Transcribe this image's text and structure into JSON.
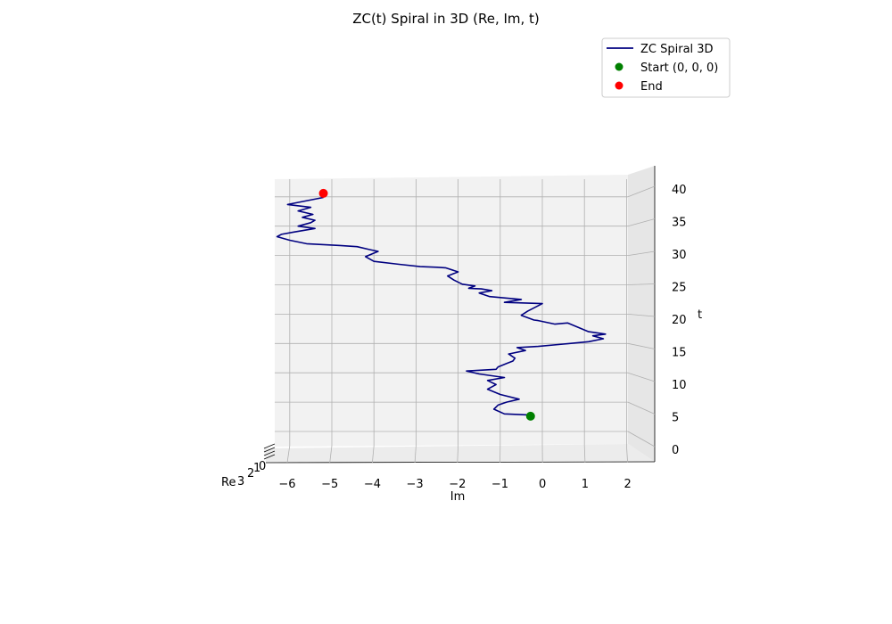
{
  "chart_data": {
    "type": "line",
    "projection": "3d",
    "title": "ZC(t) Spiral in 3D (Re, Im, t)",
    "xlabel": "Re",
    "ylabel": "Im",
    "zlabel": "t",
    "x_ticks": [
      "0",
      "1",
      "2",
      "3"
    ],
    "y_ticks": [
      "−6",
      "−5",
      "−4",
      "−3",
      "−2",
      "−1",
      "0",
      "1",
      "2"
    ],
    "z_ticks": [
      "0",
      "5",
      "10",
      "15",
      "20",
      "25",
      "30",
      "35",
      "40"
    ],
    "ylim": [
      -6.3,
      2.6
    ],
    "zlim": [
      -1,
      42
    ],
    "grid": true,
    "legend_position": "top-right",
    "colors": {
      "line": "#000080",
      "start": "#008000",
      "end": "#ff0000"
    },
    "series": [
      {
        "name": "ZC Spiral 3D",
        "kind": "line",
        "im": [
          -0.28,
          -0.9,
          -1.15,
          -1.05,
          -0.85,
          -0.55,
          -1.0,
          -1.3,
          -1.1,
          -1.3,
          -0.9,
          -1.5,
          -1.8,
          -1.1,
          -1.05,
          -0.85,
          -0.7,
          -0.65,
          -0.8,
          -0.4,
          -0.6,
          -0.1,
          0.5,
          1.1,
          1.45,
          1.2,
          1.5,
          1.1,
          0.6,
          0.3,
          -0.1,
          -0.2,
          -0.5,
          -0.35,
          0.0,
          -0.9,
          -0.5,
          -1.25,
          -1.5,
          -1.2,
          -1.45,
          -1.75,
          -1.6,
          -1.9,
          -2.1,
          -2.25,
          -2.0,
          -2.3,
          -2.5,
          -2.9,
          -3.4,
          -4.0,
          -4.2,
          -3.9,
          -4.1,
          -4.4,
          -4.8,
          -5.6,
          -6.0,
          -6.3,
          -6.2,
          -5.9,
          -5.4,
          -5.8,
          -5.5,
          -5.4,
          -5.7,
          -5.45,
          -5.8,
          -5.5,
          -6.05,
          -5.2
        ],
        "t": [
          2.8,
          3.0,
          3.8,
          4.5,
          5.0,
          5.5,
          6.3,
          7.2,
          8.0,
          8.7,
          9.2,
          9.8,
          10.3,
          10.6,
          11.0,
          11.6,
          12.0,
          12.5,
          13.2,
          13.8,
          14.3,
          14.5,
          14.9,
          15.3,
          15.8,
          16.3,
          16.6,
          17.0,
          18.5,
          18.3,
          18.9,
          19.0,
          19.8,
          20.5,
          21.8,
          22.0,
          22.5,
          23.0,
          23.6,
          24.0,
          24.3,
          24.4,
          24.8,
          25.1,
          25.8,
          26.5,
          27.2,
          27.9,
          28.0,
          28.1,
          28.5,
          29.0,
          29.8,
          30.7,
          31.0,
          31.5,
          31.7,
          32.0,
          32.6,
          33.2,
          33.6,
          34.0,
          34.6,
          35.0,
          35.6,
          36.0,
          36.5,
          37.0,
          37.6,
          38.2,
          38.7,
          39.9
        ]
      },
      {
        "name": "Start (0, 0, 0)",
        "kind": "point",
        "im": -0.28,
        "t": 2.6
      },
      {
        "name": "End",
        "kind": "point",
        "im": -5.2,
        "t": 40.6
      }
    ]
  }
}
